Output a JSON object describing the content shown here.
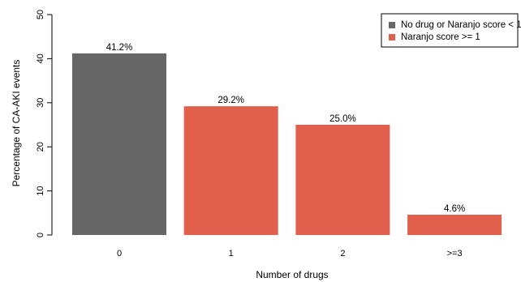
{
  "chart_data": {
    "type": "bar",
    "categories": [
      "0",
      "1",
      "2",
      ">=3"
    ],
    "values": [
      41.2,
      29.2,
      25.0,
      4.6
    ],
    "data_labels": [
      "41.2%",
      "29.2%",
      "25.0%",
      "4.6%"
    ],
    "bar_series_index": [
      0,
      1,
      1,
      1
    ],
    "series": [
      {
        "name": "No drug or Naranjo score < 1",
        "color": "#666666"
      },
      {
        "name": "Naranjo score >= 1",
        "color": "#e0604c"
      }
    ],
    "xlabel": "Number of drugs",
    "ylabel": "Percentage of CA-AKI events",
    "ylim": [
      0,
      50
    ],
    "yticks": [
      0,
      10,
      20,
      30,
      40,
      50
    ],
    "grid": false,
    "legend_position": "top-right"
  }
}
